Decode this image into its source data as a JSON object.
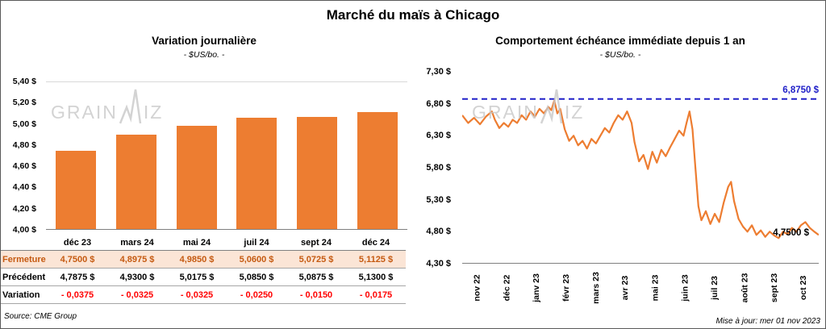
{
  "title": "Marché du maïs à Chicago",
  "watermark": {
    "prefix": "GRAIN",
    "suffix": "IZ"
  },
  "left_chart": {
    "title": "Variation journalière",
    "subtitle": "- $US/bo. -",
    "source": "Source: CME Group",
    "chart_data": {
      "type": "bar",
      "categories": [
        "déc 23",
        "mars 24",
        "mai 24",
        "juil 24",
        "sept 24",
        "déc 24"
      ],
      "values": [
        4.75,
        4.8975,
        4.985,
        5.06,
        5.0725,
        5.1125
      ],
      "ylim": [
        4.0,
        5.4
      ],
      "yticks": [
        "5,40 $",
        "5,20 $",
        "5,00 $",
        "4,80 $",
        "4,60 $",
        "4,40 $",
        "4,20 $",
        "4,00 $"
      ],
      "bar_color": "#ED7D31"
    },
    "table": {
      "rows": [
        {
          "label": "Fermeture",
          "values": [
            "4,7500  $",
            "4,8975  $",
            "4,9850  $",
            "5,0600  $",
            "5,0725  $",
            "5,1125  $"
          ]
        },
        {
          "label": "Précédent",
          "values": [
            "4,7875  $",
            "4,9300  $",
            "5,0175  $",
            "5,0850  $",
            "5,0875  $",
            "5,1300  $"
          ]
        },
        {
          "label": "Variation",
          "values": [
            "- 0,0375",
            "- 0,0325",
            "- 0,0325",
            "- 0,0250",
            "- 0,0150",
            "- 0,0175"
          ]
        }
      ]
    }
  },
  "right_chart": {
    "title": "Comportement échéance immédiate depuis 1 an",
    "subtitle": "- $US/bo. -",
    "updated": "Mise à jour: mer 01 nov 2023",
    "chart_data": {
      "type": "line",
      "x_labels": [
        "nov 22",
        "déc 22",
        "janv 23",
        "févr 23",
        "mars 23",
        "avr 23",
        "mai 23",
        "juin 23",
        "juil 23",
        "août 23",
        "sept 23",
        "oct 23"
      ],
      "ylim": [
        4.3,
        7.3
      ],
      "yticks": [
        "7,30 $",
        "6,80 $",
        "6,30 $",
        "5,80 $",
        "5,30 $",
        "4,80 $",
        "4,30 $"
      ],
      "line_color": "#ED7D31",
      "reference_line": {
        "value": 6.875,
        "label": "6,8750 $",
        "color": "#2020C8"
      },
      "last_label": "4,7500 $",
      "last_value": 4.75,
      "points": [
        [
          0.0,
          6.62
        ],
        [
          0.2,
          6.5
        ],
        [
          0.4,
          6.58
        ],
        [
          0.6,
          6.48
        ],
        [
          0.8,
          6.6
        ],
        [
          1.0,
          6.68
        ],
        [
          1.1,
          6.55
        ],
        [
          1.25,
          6.42
        ],
        [
          1.4,
          6.5
        ],
        [
          1.55,
          6.44
        ],
        [
          1.7,
          6.55
        ],
        [
          1.85,
          6.5
        ],
        [
          2.0,
          6.62
        ],
        [
          2.15,
          6.55
        ],
        [
          2.3,
          6.68
        ],
        [
          2.45,
          6.6
        ],
        [
          2.6,
          6.72
        ],
        [
          2.75,
          6.65
        ],
        [
          2.9,
          6.75
        ],
        [
          3.0,
          6.7
        ],
        [
          3.1,
          6.85
        ],
        [
          3.2,
          6.65
        ],
        [
          3.3,
          6.72
        ],
        [
          3.45,
          6.4
        ],
        [
          3.6,
          6.22
        ],
        [
          3.75,
          6.3
        ],
        [
          3.9,
          6.15
        ],
        [
          4.05,
          6.22
        ],
        [
          4.2,
          6.1
        ],
        [
          4.35,
          6.25
        ],
        [
          4.5,
          6.18
        ],
        [
          4.65,
          6.3
        ],
        [
          4.8,
          6.42
        ],
        [
          4.95,
          6.35
        ],
        [
          5.1,
          6.5
        ],
        [
          5.25,
          6.62
        ],
        [
          5.4,
          6.55
        ],
        [
          5.55,
          6.68
        ],
        [
          5.7,
          6.5
        ],
        [
          5.8,
          6.2
        ],
        [
          5.95,
          5.9
        ],
        [
          6.1,
          6.0
        ],
        [
          6.25,
          5.78
        ],
        [
          6.4,
          6.05
        ],
        [
          6.55,
          5.88
        ],
        [
          6.7,
          6.08
        ],
        [
          6.85,
          5.98
        ],
        [
          7.0,
          6.12
        ],
        [
          7.15,
          6.25
        ],
        [
          7.3,
          6.38
        ],
        [
          7.45,
          6.3
        ],
        [
          7.55,
          6.5
        ],
        [
          7.65,
          6.68
        ],
        [
          7.75,
          6.4
        ],
        [
          7.85,
          5.8
        ],
        [
          7.95,
          5.2
        ],
        [
          8.05,
          4.98
        ],
        [
          8.2,
          5.12
        ],
        [
          8.35,
          4.92
        ],
        [
          8.5,
          5.08
        ],
        [
          8.65,
          4.95
        ],
        [
          8.8,
          5.25
        ],
        [
          8.95,
          5.5
        ],
        [
          9.05,
          5.58
        ],
        [
          9.15,
          5.28
        ],
        [
          9.3,
          5.0
        ],
        [
          9.45,
          4.88
        ],
        [
          9.6,
          4.8
        ],
        [
          9.75,
          4.9
        ],
        [
          9.9,
          4.75
        ],
        [
          10.05,
          4.82
        ],
        [
          10.2,
          4.72
        ],
        [
          10.35,
          4.8
        ],
        [
          10.5,
          4.74
        ],
        [
          10.65,
          4.7
        ],
        [
          10.8,
          4.8
        ],
        [
          10.95,
          4.76
        ],
        [
          11.1,
          4.86
        ],
        [
          11.25,
          4.8
        ],
        [
          11.4,
          4.9
        ],
        [
          11.55,
          4.95
        ],
        [
          11.7,
          4.86
        ],
        [
          11.85,
          4.8
        ],
        [
          12.0,
          4.75
        ]
      ]
    }
  }
}
